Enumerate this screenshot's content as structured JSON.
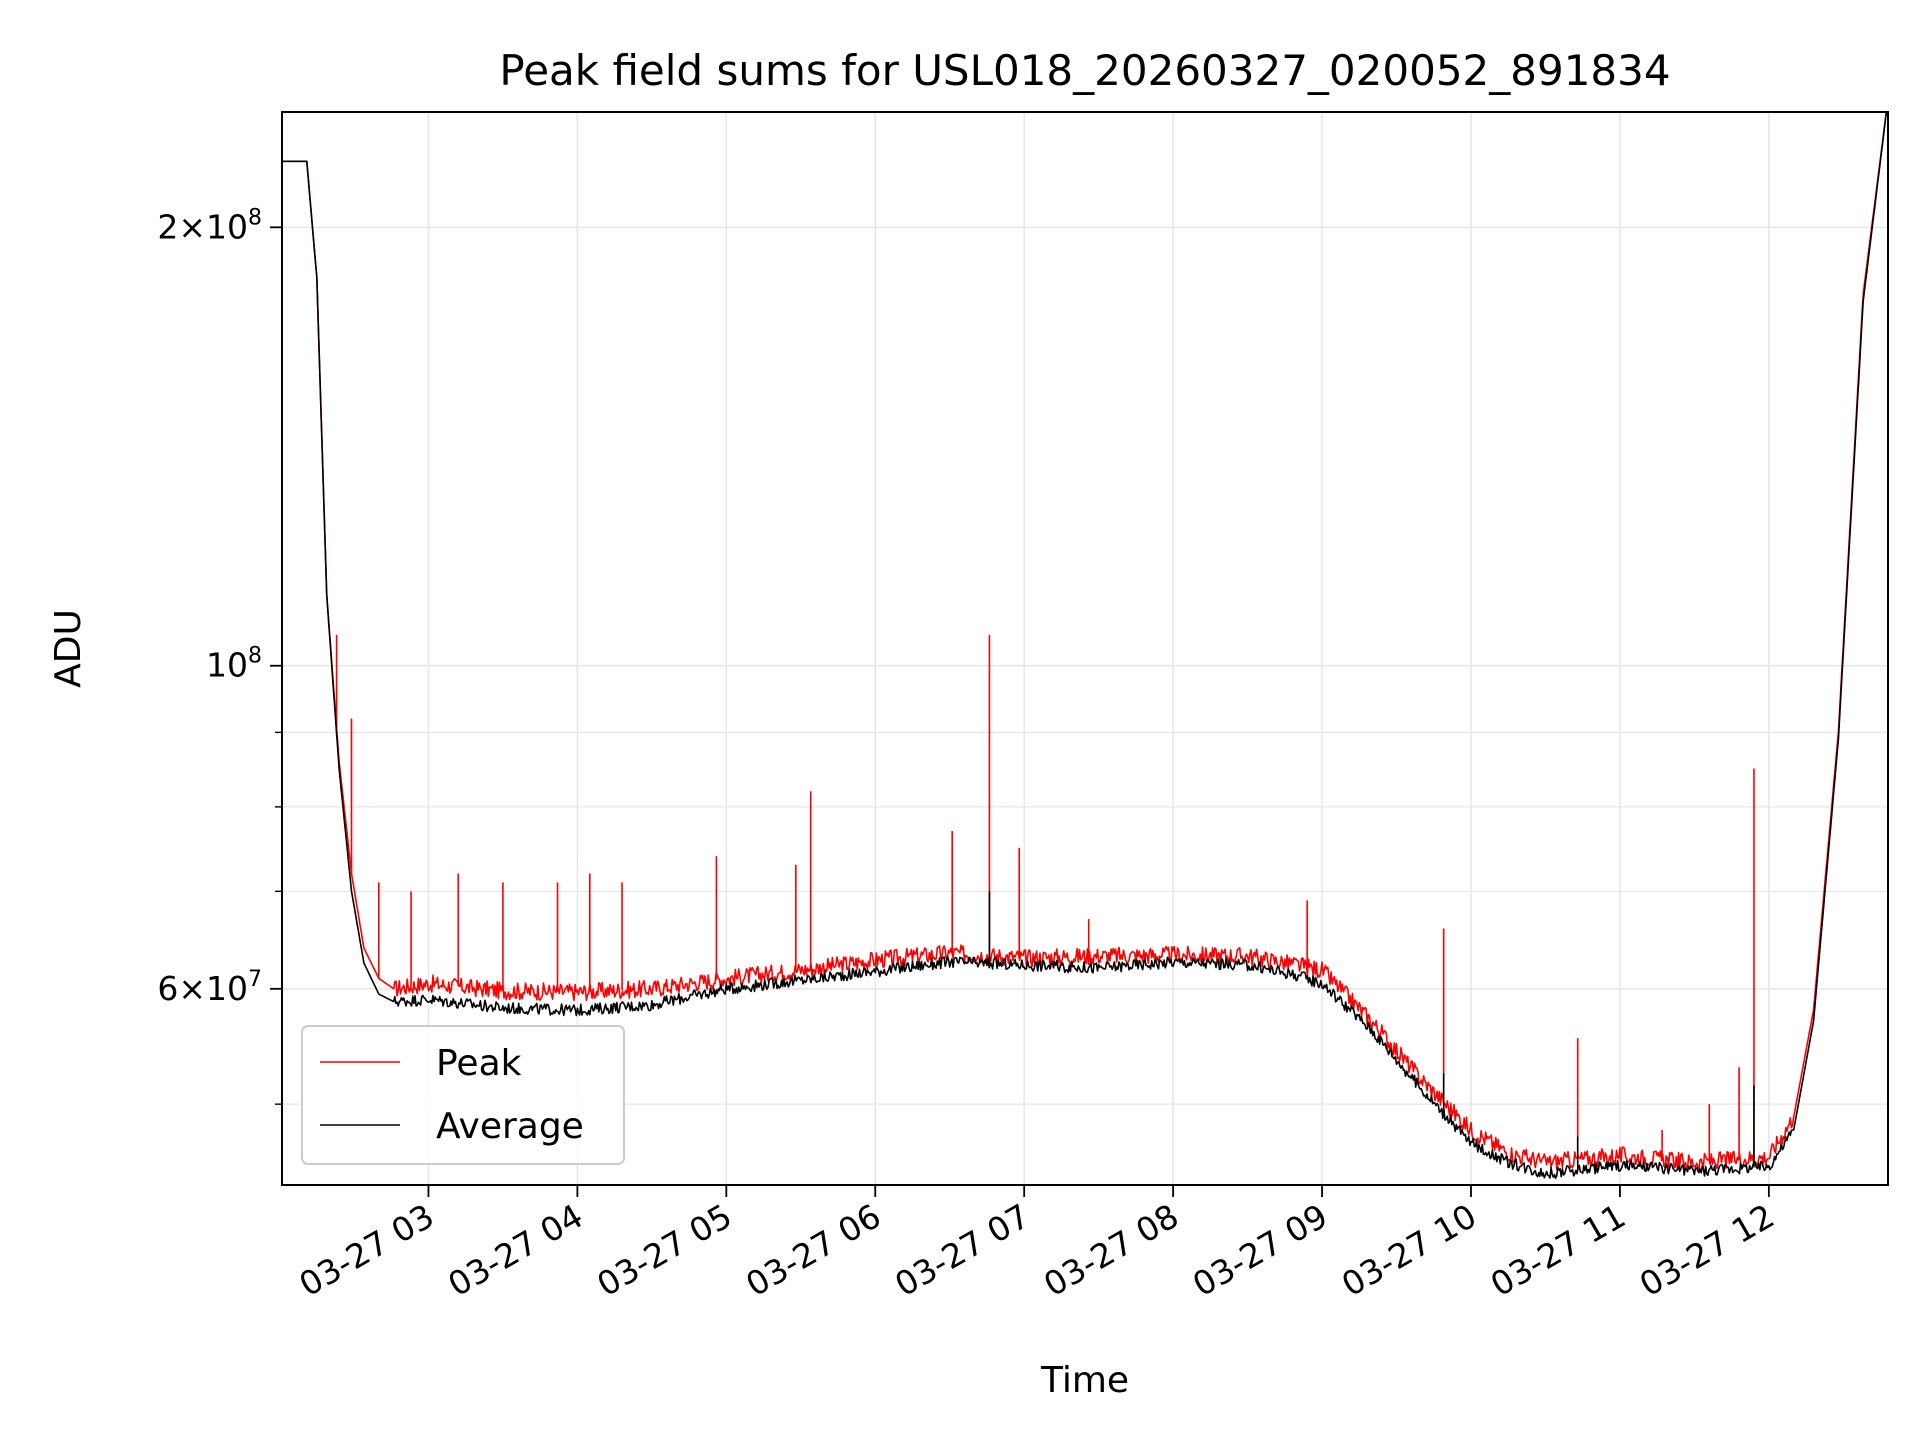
{
  "chart_data": {
    "type": "line",
    "title": "Peak field sums for USL018_20260327_020052_891834",
    "xlabel": "Time",
    "ylabel": "ADU",
    "yscale": "log",
    "xlim": [
      "2026-03-27 02:01",
      "2026-03-27 12:48"
    ],
    "ylim": [
      44000000,
      240000000
    ],
    "grid": true,
    "legend": "lower-left",
    "x_ticks": [
      "03-27 03",
      "03-27 04",
      "03-27 05",
      "03-27 06",
      "03-27 07",
      "03-27 08",
      "03-27 09",
      "03-27 10",
      "03-27 11",
      "03-27 12"
    ],
    "x_tick_times": [
      "2026-03-27 03:00",
      "2026-03-27 04:00",
      "2026-03-27 05:00",
      "2026-03-27 06:00",
      "2026-03-27 07:00",
      "2026-03-27 08:00",
      "2026-03-27 09:00",
      "2026-03-27 10:00",
      "2026-03-27 11:00",
      "2026-03-27 12:00"
    ],
    "y_ticks": [
      {
        "value": 200000000,
        "mantissa": "2",
        "exponent": "8"
      },
      {
        "value": 100000000,
        "mantissa": "",
        "exponent": "8"
      },
      {
        "value": 60000000,
        "mantissa": "6",
        "exponent": "7"
      }
    ],
    "y_minor_ticks": [
      50000000,
      70000000,
      80000000,
      90000000
    ],
    "series": [
      {
        "name": "Peak",
        "color": "#ff0000",
        "x": [
          "2026-03-27 02:01",
          "2026-03-27 02:11",
          "2026-03-27 02:15",
          "2026-03-27 02:19",
          "2026-03-27 02:24",
          "2026-03-27 02:29",
          "2026-03-27 02:34",
          "2026-03-27 02:40",
          "2026-03-27 02:46",
          "2026-03-27 03:00",
          "2026-03-27 03:30",
          "2026-03-27 04:00",
          "2026-03-27 04:30",
          "2026-03-27 05:00",
          "2026-03-27 05:30",
          "2026-03-27 06:00",
          "2026-03-27 06:30",
          "2026-03-27 07:00",
          "2026-03-27 07:30",
          "2026-03-27 08:00",
          "2026-03-27 08:30",
          "2026-03-27 08:50",
          "2026-03-27 09:00",
          "2026-03-27 09:20",
          "2026-03-27 09:40",
          "2026-03-27 10:00",
          "2026-03-27 10:15",
          "2026-03-27 10:30",
          "2026-03-27 11:00",
          "2026-03-27 11:30",
          "2026-03-27 12:00",
          "2026-03-27 12:10",
          "2026-03-27 12:18",
          "2026-03-27 12:28",
          "2026-03-27 12:38",
          "2026-03-27 12:48"
        ],
        "values": [
          222000000,
          222000000,
          185000000,
          112000000,
          86000000,
          72000000,
          64000000,
          61000000,
          60000000,
          60500000,
          59800000,
          59700000,
          60000000,
          61000000,
          61800000,
          62800000,
          63500000,
          63000000,
          63200000,
          63300000,
          63200000,
          62300000,
          61800000,
          57000000,
          52000000,
          48000000,
          46300000,
          45600000,
          46100000,
          45600000,
          46000000,
          49000000,
          58000000,
          90000000,
          180000000,
          245000000
        ],
        "spikes": [
          {
            "x": "2026-03-27 02:23",
            "value": 105000000
          },
          {
            "x": "2026-03-27 02:29",
            "value": 92000000
          },
          {
            "x": "2026-03-27 02:40",
            "value": 71000000
          },
          {
            "x": "2026-03-27 02:53",
            "value": 70000000
          },
          {
            "x": "2026-03-27 03:12",
            "value": 72000000
          },
          {
            "x": "2026-03-27 03:30",
            "value": 71000000
          },
          {
            "x": "2026-03-27 03:52",
            "value": 71000000
          },
          {
            "x": "2026-03-27 04:05",
            "value": 72000000
          },
          {
            "x": "2026-03-27 04:18",
            "value": 71000000
          },
          {
            "x": "2026-03-27 04:56",
            "value": 74000000
          },
          {
            "x": "2026-03-27 05:28",
            "value": 73000000
          },
          {
            "x": "2026-03-27 05:34",
            "value": 82000000
          },
          {
            "x": "2026-03-27 06:31",
            "value": 77000000
          },
          {
            "x": "2026-03-27 06:46",
            "value": 105000000
          },
          {
            "x": "2026-03-27 06:58",
            "value": 75000000
          },
          {
            "x": "2026-03-27 07:26",
            "value": 67000000
          },
          {
            "x": "2026-03-27 08:54",
            "value": 69000000
          },
          {
            "x": "2026-03-27 09:49",
            "value": 66000000
          },
          {
            "x": "2026-03-27 10:43",
            "value": 55500000
          },
          {
            "x": "2026-03-27 11:17",
            "value": 48000000
          },
          {
            "x": "2026-03-27 11:36",
            "value": 50000000
          },
          {
            "x": "2026-03-27 11:48",
            "value": 53000000
          },
          {
            "x": "2026-03-27 11:54",
            "value": 85000000
          }
        ]
      },
      {
        "name": "Average",
        "color": "#000000",
        "x": [
          "2026-03-27 02:01",
          "2026-03-27 02:11",
          "2026-03-27 02:15",
          "2026-03-27 02:19",
          "2026-03-27 02:24",
          "2026-03-27 02:29",
          "2026-03-27 02:34",
          "2026-03-27 02:40",
          "2026-03-27 02:46",
          "2026-03-27 03:00",
          "2026-03-27 03:30",
          "2026-03-27 04:00",
          "2026-03-27 04:30",
          "2026-03-27 05:00",
          "2026-03-27 05:30",
          "2026-03-27 06:00",
          "2026-03-27 06:30",
          "2026-03-27 07:00",
          "2026-03-27 07:30",
          "2026-03-27 08:00",
          "2026-03-27 08:30",
          "2026-03-27 08:50",
          "2026-03-27 09:00",
          "2026-03-27 09:20",
          "2026-03-27 09:40",
          "2026-03-27 10:00",
          "2026-03-27 10:15",
          "2026-03-27 10:30",
          "2026-03-27 11:00",
          "2026-03-27 11:30",
          "2026-03-27 12:00",
          "2026-03-27 12:10",
          "2026-03-27 12:18",
          "2026-03-27 12:28",
          "2026-03-27 12:38",
          "2026-03-27 12:48"
        ],
        "values": [
          222000000,
          222000000,
          185000000,
          112000000,
          85000000,
          70000000,
          62500000,
          59500000,
          58800000,
          59000000,
          58200000,
          58000000,
          58500000,
          60000000,
          60800000,
          61700000,
          62600000,
          62300000,
          62000000,
          62600000,
          62300000,
          61300000,
          60500000,
          56200000,
          51200000,
          47000000,
          45600000,
          44800000,
          45400000,
          45000000,
          45300000,
          48000000,
          57000000,
          89000000,
          178000000,
          245000000
        ],
        "spikes": [
          {
            "x": "2026-03-27 06:46",
            "value": 70000000
          },
          {
            "x": "2026-03-27 09:49",
            "value": 52500000
          },
          {
            "x": "2026-03-27 10:43",
            "value": 47500000
          },
          {
            "x": "2026-03-27 11:54",
            "value": 51500000
          }
        ]
      }
    ]
  }
}
